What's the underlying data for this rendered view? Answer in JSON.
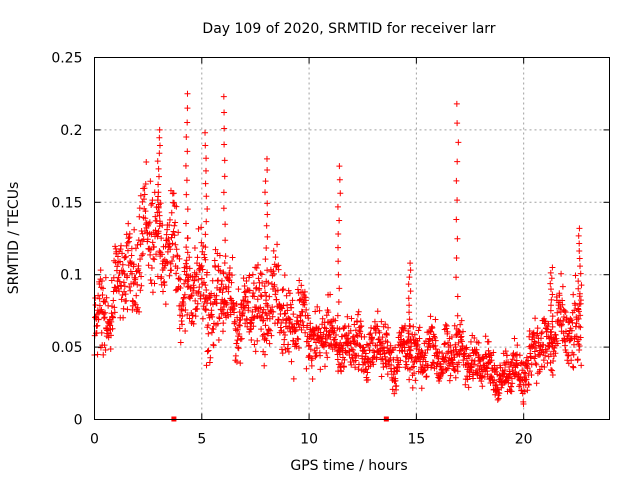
{
  "chart_data": {
    "type": "scatter",
    "title": "Day 109 of 2020, SRMTID for receiver larr",
    "xlabel": "GPS time / hours",
    "ylabel": "SRMTID / TECUs",
    "xlim": [
      0,
      24
    ],
    "ylim": [
      0,
      0.25
    ],
    "xticks": [
      0,
      5,
      10,
      15,
      20
    ],
    "xtick_labels": [
      "0",
      "5",
      "10",
      "15",
      "20"
    ],
    "yticks": [
      0,
      0.05,
      0.1,
      0.15,
      0.2,
      0.25
    ],
    "ytick_labels": [
      "0",
      "0.05",
      "0.1",
      "0.15",
      "0.2",
      "0.25"
    ],
    "grid": true,
    "marker": "plus",
    "color": "#ff0000",
    "gap_markers_x": [
      3.7,
      13.6
    ],
    "series": [
      {
        "name": "SRMTID",
        "envelope": {
          "x": [
            0,
            1,
            2,
            3,
            4,
            5,
            6,
            7,
            8,
            9,
            10,
            11,
            12,
            13,
            14,
            15,
            16,
            17,
            18,
            19,
            20,
            21,
            22,
            22.7
          ],
          "mean": [
            0.065,
            0.085,
            0.11,
            0.13,
            0.1,
            0.085,
            0.08,
            0.075,
            0.08,
            0.075,
            0.06,
            0.055,
            0.05,
            0.05,
            0.045,
            0.045,
            0.045,
            0.045,
            0.04,
            0.03,
            0.035,
            0.055,
            0.06,
            0.065
          ],
          "spread": [
            0.025,
            0.03,
            0.04,
            0.04,
            0.035,
            0.035,
            0.03,
            0.025,
            0.03,
            0.03,
            0.025,
            0.02,
            0.02,
            0.02,
            0.02,
            0.02,
            0.02,
            0.02,
            0.015,
            0.015,
            0.02,
            0.025,
            0.025,
            0.035
          ]
        },
        "spikes": [
          {
            "x": 3.0,
            "top": 0.2
          },
          {
            "x": 4.3,
            "top": 0.225
          },
          {
            "x": 5.2,
            "top": 0.198
          },
          {
            "x": 6.05,
            "top": 0.223
          },
          {
            "x": 8.0,
            "top": 0.18
          },
          {
            "x": 11.4,
            "top": 0.175
          },
          {
            "x": 16.9,
            "top": 0.218
          },
          {
            "x": 22.6,
            "top": 0.132
          },
          {
            "x": 14.7,
            "top": 0.108
          },
          {
            "x": 21.3,
            "top": 0.105
          }
        ]
      }
    ]
  }
}
